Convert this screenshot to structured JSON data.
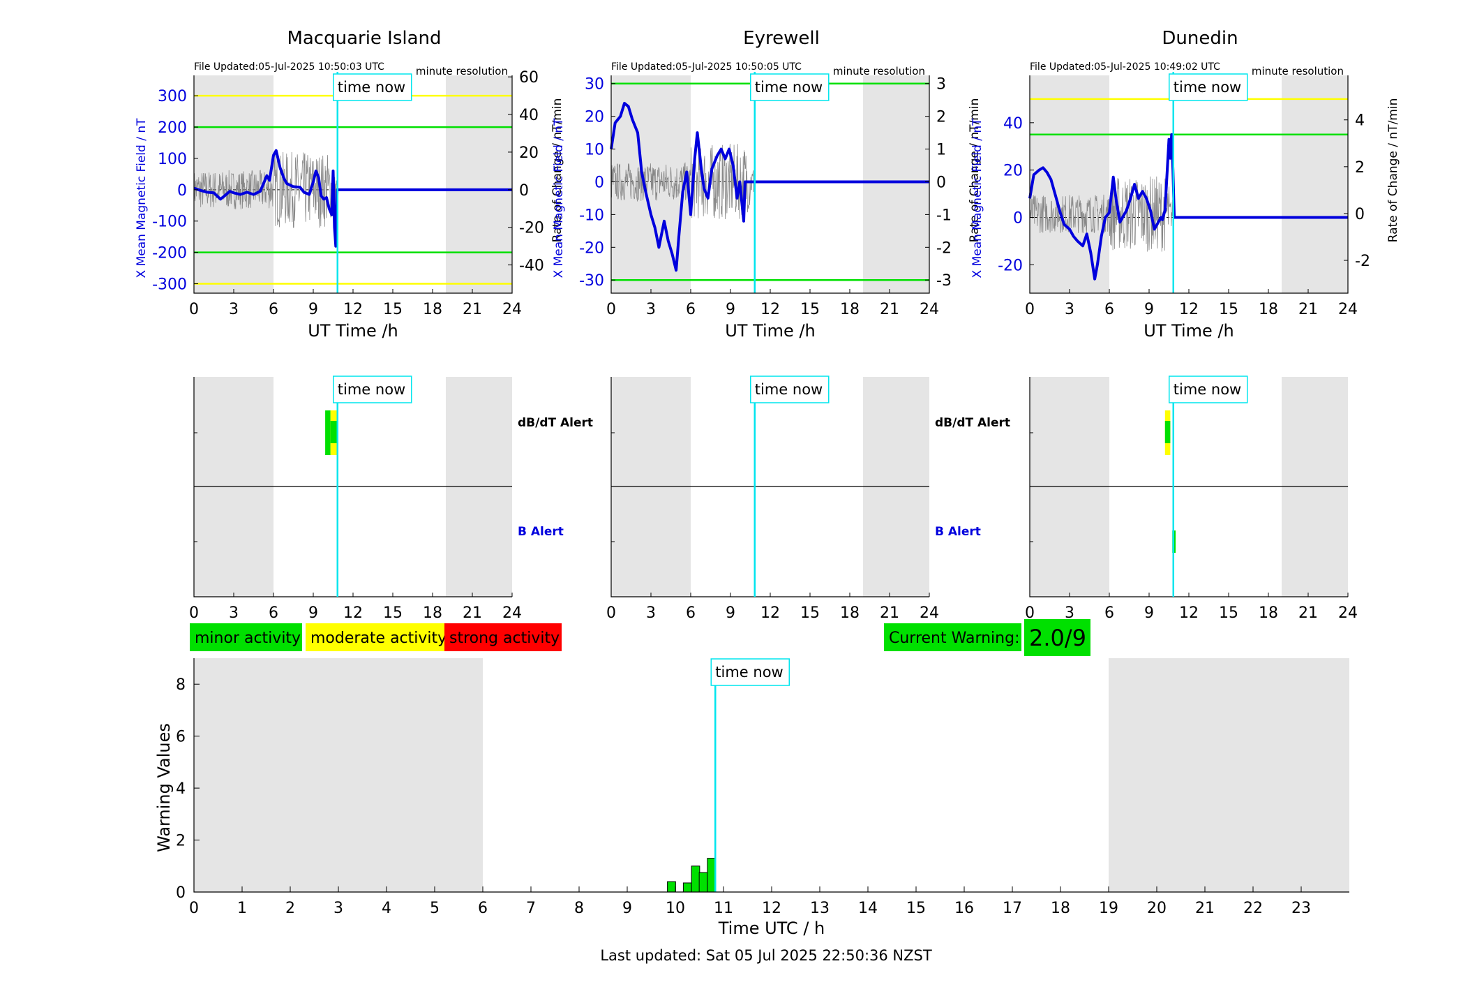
{
  "stations": [
    {
      "name": "Macquarie Island",
      "file_updated": "File Updated:05-Jul-2025 10:50:03 UTC",
      "resolution": "minute resolution",
      "ylabel_left": "X Mean Magnetic Field / nT",
      "ylabel_right": "Rate of Change / nT/min",
      "xlabel": "UT Time /h",
      "left_ylim": [
        -330,
        365
      ],
      "right_ylim": [
        -55,
        60.8
      ],
      "left_ticks": [
        300,
        200,
        100,
        0,
        -100,
        -200,
        -300
      ],
      "right_ticks": [
        60,
        40,
        20,
        0,
        -20,
        -40
      ],
      "thresholds": [
        {
          "value": 300,
          "color": "#ffff00"
        },
        {
          "value": 200,
          "color": "#00e000"
        },
        {
          "value": -200,
          "color": "#00e000"
        },
        {
          "value": -300,
          "color": "#ffff00"
        }
      ],
      "shade": [
        [
          0,
          6
        ],
        [
          19,
          24
        ]
      ],
      "time_now": 10.83,
      "time_now_label": "time now",
      "x_series": [
        [
          0,
          5
        ],
        [
          0.5,
          -2
        ],
        [
          1,
          -8
        ],
        [
          1.5,
          -10
        ],
        [
          2,
          -30
        ],
        [
          2.3,
          -20
        ],
        [
          2.7,
          -5
        ],
        [
          3,
          -10
        ],
        [
          3.5,
          -15
        ],
        [
          4,
          -8
        ],
        [
          4.5,
          -15
        ],
        [
          5,
          -5
        ],
        [
          5.5,
          45
        ],
        [
          5.7,
          30
        ],
        [
          6,
          110
        ],
        [
          6.2,
          125
        ],
        [
          6.5,
          70
        ],
        [
          6.8,
          35
        ],
        [
          7,
          20
        ],
        [
          7.5,
          10
        ],
        [
          8,
          8
        ],
        [
          8.3,
          -8
        ],
        [
          8.7,
          -15
        ],
        [
          9,
          25
        ],
        [
          9.2,
          60
        ],
        [
          9.4,
          40
        ],
        [
          9.6,
          -20
        ],
        [
          9.8,
          -30
        ],
        [
          10,
          -25
        ],
        [
          10.2,
          -60
        ],
        [
          10.4,
          -80
        ],
        [
          10.5,
          60
        ],
        [
          10.6,
          -120
        ],
        [
          10.7,
          -180
        ],
        [
          10.8,
          0
        ],
        [
          24,
          0
        ]
      ],
      "alert_dbdt": [
        {
          "t0": 9.9,
          "t1": 10.3,
          "color": "#00e000"
        },
        {
          "t0": 10.3,
          "t1": 10.8,
          "color": "#ffff00",
          "inner": "#00e000"
        }
      ],
      "alert_b": []
    },
    {
      "name": "Eyrewell",
      "file_updated": "File Updated:05-Jul-2025 10:50:05 UTC",
      "resolution": "minute resolution",
      "ylabel_left": "X Mean Magnetic Field / nT",
      "ylabel_right": "Rate of Change / nT/min",
      "xlabel": "UT Time /h",
      "left_ylim": [
        -34,
        32.5
      ],
      "right_ylim": [
        -3.4,
        3.25
      ],
      "left_ticks": [
        30,
        20,
        10,
        0,
        -10,
        -20,
        -30
      ],
      "right_ticks": [
        3,
        2,
        1,
        0,
        -1,
        -2,
        -3
      ],
      "thresholds": [
        {
          "value": 30,
          "color": "#00e000"
        },
        {
          "value": -30,
          "color": "#00e000"
        }
      ],
      "shade": [
        [
          0,
          6
        ],
        [
          19,
          24
        ]
      ],
      "time_now": 10.83,
      "time_now_label": "time now",
      "x_series": [
        [
          0,
          10
        ],
        [
          0.3,
          18
        ],
        [
          0.7,
          20
        ],
        [
          1,
          24
        ],
        [
          1.3,
          23
        ],
        [
          1.6,
          19
        ],
        [
          2,
          15
        ],
        [
          2.3,
          3
        ],
        [
          2.6,
          -3
        ],
        [
          3,
          -10
        ],
        [
          3.3,
          -14
        ],
        [
          3.6,
          -20
        ],
        [
          4,
          -12
        ],
        [
          4.3,
          -18
        ],
        [
          4.6,
          -22
        ],
        [
          4.9,
          -27
        ],
        [
          5.1,
          -17
        ],
        [
          5.4,
          -3
        ],
        [
          5.7,
          3
        ],
        [
          6,
          -10
        ],
        [
          6.3,
          7
        ],
        [
          6.5,
          15
        ],
        [
          6.8,
          4
        ],
        [
          7,
          -2
        ],
        [
          7.3,
          -5
        ],
        [
          7.6,
          4
        ],
        [
          8,
          8
        ],
        [
          8.3,
          10
        ],
        [
          8.6,
          7
        ],
        [
          8.9,
          10
        ],
        [
          9.2,
          5
        ],
        [
          9.5,
          -5
        ],
        [
          9.7,
          0
        ],
        [
          10,
          -12
        ],
        [
          10.1,
          0
        ],
        [
          24,
          0
        ]
      ],
      "alert_dbdt": [],
      "alert_b": []
    },
    {
      "name": "Dunedin",
      "file_updated": "File Updated:05-Jul-2025 10:49:02 UTC",
      "resolution": "minute resolution",
      "ylabel_left": "X Mean Magnetic Field / nT",
      "ylabel_right": "Rate of Change / nT/min",
      "xlabel": "UT Time /h",
      "left_ylim": [
        -32,
        60
      ],
      "right_ylim": [
        -3.4,
        5.9
      ],
      "left_ticks": [
        40,
        20,
        0,
        -20
      ],
      "right_ticks": [
        4,
        2,
        0,
        -2
      ],
      "thresholds": [
        {
          "value": 50,
          "color": "#ffff00"
        },
        {
          "value": 35,
          "color": "#00e000"
        }
      ],
      "shade": [
        [
          0,
          6
        ],
        [
          19,
          24
        ]
      ],
      "time_now": 10.83,
      "time_now_label": "time now",
      "x_series": [
        [
          0,
          8
        ],
        [
          0.3,
          18
        ],
        [
          0.7,
          20
        ],
        [
          1,
          21
        ],
        [
          1.3,
          19
        ],
        [
          1.6,
          16
        ],
        [
          2,
          8
        ],
        [
          2.3,
          2
        ],
        [
          2.6,
          -3
        ],
        [
          3,
          -5
        ],
        [
          3.3,
          -8
        ],
        [
          3.6,
          -10
        ],
        [
          4,
          -12
        ],
        [
          4.3,
          -7
        ],
        [
          4.6,
          -15
        ],
        [
          4.9,
          -26
        ],
        [
          5.1,
          -20
        ],
        [
          5.4,
          -8
        ],
        [
          5.7,
          0
        ],
        [
          6,
          2
        ],
        [
          6.3,
          17
        ],
        [
          6.5,
          8
        ],
        [
          6.8,
          -2
        ],
        [
          7,
          0
        ],
        [
          7.3,
          3
        ],
        [
          7.6,
          8
        ],
        [
          7.9,
          14
        ],
        [
          8.2,
          8
        ],
        [
          8.5,
          11
        ],
        [
          8.8,
          8
        ],
        [
          9.1,
          3
        ],
        [
          9.4,
          -5
        ],
        [
          9.6,
          -3
        ],
        [
          9.9,
          0
        ],
        [
          10,
          -1
        ],
        [
          10.2,
          3
        ],
        [
          10.5,
          33
        ],
        [
          10.6,
          25
        ],
        [
          10.7,
          35
        ],
        [
          10.8,
          20
        ],
        [
          10.9,
          0
        ],
        [
          24,
          0
        ]
      ],
      "alert_dbdt": [
        {
          "t0": 10.2,
          "t1": 10.6,
          "color": "#ffff00",
          "inner": "#00e000"
        }
      ],
      "alert_b": [
        {
          "t0": 10.75,
          "t1": 11.0,
          "color": "#00e000"
        }
      ]
    }
  ],
  "alert_labels": {
    "dbdt": "dB/dT Alert",
    "b": "B Alert"
  },
  "alert_xticks": [
    0,
    3,
    6,
    9,
    12,
    15,
    18,
    21,
    24
  ],
  "legend": {
    "minor": "minor activity",
    "moderate": "moderate activity",
    "strong": "strong activity",
    "current_warning_label": "Current Warning:",
    "current_warning_value": "2.0/9"
  },
  "colors": {
    "minor": "#00e000",
    "moderate": "#ffff00",
    "strong": "#ff0000",
    "time_now": "#00e5ee",
    "field": "#0000dd",
    "shade": "#e5e5e5"
  },
  "chart_data": {
    "type": "bar",
    "ylabel": "Warning Values",
    "xlabel": "Time UTC / h",
    "xlim": [
      0,
      24
    ],
    "ylim": [
      0,
      9
    ],
    "yticks": [
      0,
      2,
      4,
      6,
      8
    ],
    "xticks": [
      0,
      1,
      2,
      3,
      4,
      5,
      6,
      7,
      8,
      9,
      10,
      11,
      12,
      13,
      14,
      15,
      16,
      17,
      18,
      19,
      20,
      21,
      22,
      23
    ],
    "shade": [
      [
        0,
        6
      ],
      [
        19,
        24
      ]
    ],
    "time_now": 10.83,
    "time_now_label": "time now",
    "bars": [
      {
        "t": 9.92,
        "value": 0.4
      },
      {
        "t": 10.25,
        "value": 0.35
      },
      {
        "t": 10.42,
        "value": 1.0
      },
      {
        "t": 10.58,
        "value": 0.75
      },
      {
        "t": 10.75,
        "value": 1.3
      }
    ]
  },
  "footer": "Last updated: Sat 05 Jul 2025 22:50:36 NZST"
}
